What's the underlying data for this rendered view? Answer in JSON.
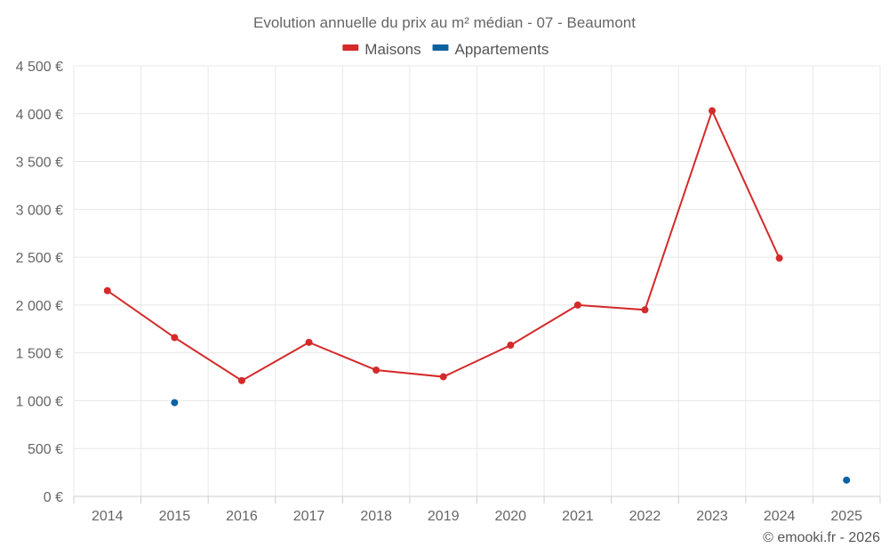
{
  "chart_data": {
    "type": "line",
    "title": "Evolution annuelle du prix au m² médian - 07 - Beaumont",
    "categories": [
      "2014",
      "2015",
      "2016",
      "2017",
      "2018",
      "2019",
      "2020",
      "2021",
      "2022",
      "2023",
      "2024",
      "2025"
    ],
    "series": [
      {
        "name": "Maisons",
        "color": "#d42a2a",
        "values": [
          2150,
          1660,
          1210,
          1610,
          1320,
          1250,
          1580,
          2000,
          1950,
          4030,
          2490,
          null
        ]
      },
      {
        "name": "Appartements",
        "color": "#0a62a0",
        "values": [
          null,
          980,
          null,
          null,
          null,
          null,
          null,
          null,
          null,
          null,
          null,
          170
        ]
      }
    ],
    "ylim": [
      0,
      4500
    ],
    "yticks": [
      0,
      500,
      1000,
      1500,
      2000,
      2500,
      3000,
      3500,
      4000,
      4500
    ],
    "ytick_labels": [
      "0 €",
      "500 €",
      "1 000 €",
      "1 500 €",
      "2 000 €",
      "2 500 €",
      "3 000 €",
      "3 500 €",
      "4 000 €",
      "4 500 €"
    ],
    "xlabel": "",
    "ylabel": "",
    "grid": true,
    "legend_position": "top-center"
  },
  "credit": "© emooki.fr - 2026"
}
